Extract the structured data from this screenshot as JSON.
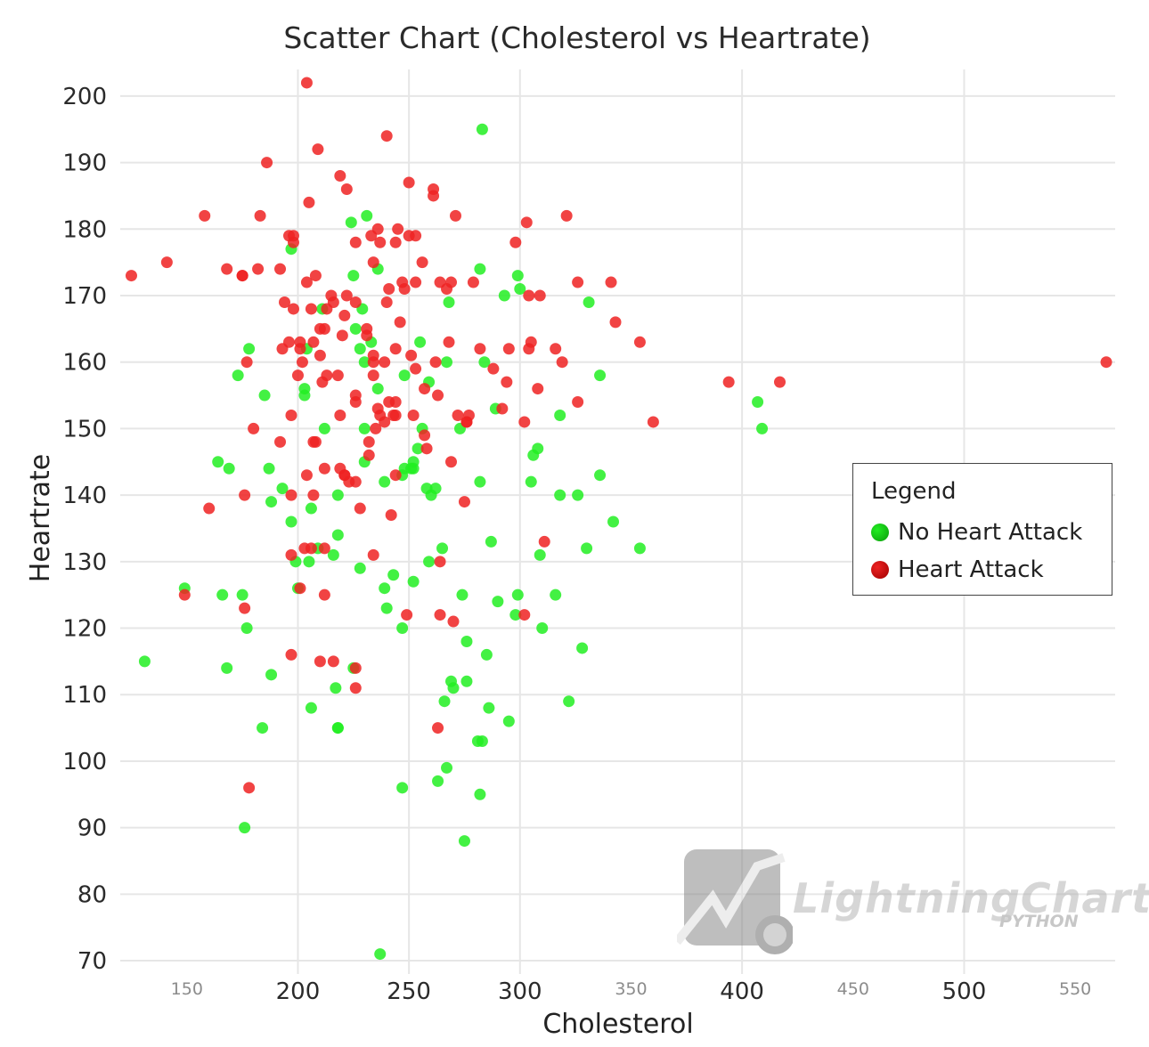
{
  "chart_data": {
    "type": "scatter",
    "title": "Scatter Chart (Cholesterol vs Heartrate)",
    "xlabel": "Cholesterol",
    "ylabel": "Heartrate",
    "xlim": [
      120,
      568
    ],
    "ylim": [
      68,
      204
    ],
    "x_ticks_major": [
      200,
      250,
      300,
      400,
      500
    ],
    "x_ticks_minor": [
      150,
      350,
      450,
      550
    ],
    "y_ticks": [
      70,
      80,
      90,
      100,
      110,
      120,
      130,
      140,
      150,
      160,
      170,
      180,
      190,
      200
    ],
    "grid": true,
    "legend": {
      "title": "Legend",
      "placement": "right"
    },
    "series": [
      {
        "name": "No Heart Attack",
        "color": "#22ee22",
        "points": [
          [
            283,
            195
          ],
          [
            231,
            182
          ],
          [
            224,
            181
          ],
          [
            197,
            177
          ],
          [
            236,
            174
          ],
          [
            282,
            174
          ],
          [
            299,
            173
          ],
          [
            225,
            173
          ],
          [
            300,
            171
          ],
          [
            293,
            170
          ],
          [
            331,
            169
          ],
          [
            268,
            169
          ],
          [
            229,
            168
          ],
          [
            211,
            168
          ],
          [
            226,
            165
          ],
          [
            233,
            163
          ],
          [
            255,
            163
          ],
          [
            204,
            162
          ],
          [
            178,
            162
          ],
          [
            228,
            162
          ],
          [
            230,
            160
          ],
          [
            267,
            160
          ],
          [
            284,
            160
          ],
          [
            173,
            158
          ],
          [
            248,
            158
          ],
          [
            336,
            158
          ],
          [
            259,
            157
          ],
          [
            185,
            155
          ],
          [
            203,
            155
          ],
          [
            203,
            156
          ],
          [
            236,
            156
          ],
          [
            289,
            153
          ],
          [
            308,
            147
          ],
          [
            306,
            146
          ],
          [
            252,
            145
          ],
          [
            230,
            145
          ],
          [
            318,
            152
          ],
          [
            273,
            150
          ],
          [
            212,
            150
          ],
          [
            230,
            150
          ],
          [
            254,
            147
          ],
          [
            256,
            150
          ],
          [
            164,
            145
          ],
          [
            169,
            144
          ],
          [
            187,
            144
          ],
          [
            248,
            144
          ],
          [
            251,
            144
          ],
          [
            252,
            144
          ],
          [
            336,
            143
          ],
          [
            247,
            143
          ],
          [
            262,
            141
          ],
          [
            258,
            141
          ],
          [
            260,
            140
          ],
          [
            193,
            141
          ],
          [
            218,
            140
          ],
          [
            239,
            142
          ],
          [
            318,
            140
          ],
          [
            326,
            140
          ],
          [
            282,
            142
          ],
          [
            305,
            142
          ],
          [
            188,
            139
          ],
          [
            197,
            136
          ],
          [
            206,
            138
          ],
          [
            342,
            136
          ],
          [
            218,
            134
          ],
          [
            287,
            133
          ],
          [
            209,
            132
          ],
          [
            216,
            131
          ],
          [
            205,
            130
          ],
          [
            199,
            130
          ],
          [
            354,
            132
          ],
          [
            330,
            132
          ],
          [
            309,
            131
          ],
          [
            265,
            132
          ],
          [
            259,
            130
          ],
          [
            243,
            128
          ],
          [
            252,
            127
          ],
          [
            166,
            125
          ],
          [
            175,
            125
          ],
          [
            177,
            120
          ],
          [
            149,
            126
          ],
          [
            200,
            126
          ],
          [
            228,
            129
          ],
          [
            239,
            126
          ],
          [
            274,
            125
          ],
          [
            299,
            125
          ],
          [
            316,
            125
          ],
          [
            290,
            124
          ],
          [
            240,
            123
          ],
          [
            298,
            122
          ],
          [
            310,
            120
          ],
          [
            247,
            120
          ],
          [
            328,
            117
          ],
          [
            276,
            118
          ],
          [
            285,
            116
          ],
          [
            168,
            114
          ],
          [
            131,
            115
          ],
          [
            188,
            113
          ],
          [
            225,
            114
          ],
          [
            269,
            112
          ],
          [
            270,
            111
          ],
          [
            276,
            112
          ],
          [
            217,
            111
          ],
          [
            206,
            108
          ],
          [
            266,
            109
          ],
          [
            286,
            108
          ],
          [
            322,
            109
          ],
          [
            295,
            106
          ],
          [
            184,
            105
          ],
          [
            218,
            105
          ],
          [
            281,
            103
          ],
          [
            283,
            103
          ],
          [
            267,
            99
          ],
          [
            263,
            97
          ],
          [
            247,
            96
          ],
          [
            282,
            95
          ],
          [
            176,
            90
          ],
          [
            275,
            88
          ],
          [
            237,
            71
          ],
          [
            407,
            154
          ],
          [
            409,
            150
          ],
          [
            218,
            105
          ]
        ]
      },
      {
        "name": "Heart Attack",
        "color": "#ee2222",
        "points": [
          [
            204,
            202
          ],
          [
            240,
            194
          ],
          [
            209,
            192
          ],
          [
            186,
            190
          ],
          [
            219,
            188
          ],
          [
            250,
            187
          ],
          [
            261,
            186
          ],
          [
            261,
            185
          ],
          [
            222,
            186
          ],
          [
            205,
            184
          ],
          [
            158,
            182
          ],
          [
            183,
            182
          ],
          [
            271,
            182
          ],
          [
            321,
            182
          ],
          [
            303,
            181
          ],
          [
            236,
            180
          ],
          [
            245,
            180
          ],
          [
            198,
            179
          ],
          [
            196,
            179
          ],
          [
            233,
            179
          ],
          [
            250,
            179
          ],
          [
            253,
            179
          ],
          [
            298,
            178
          ],
          [
            226,
            178
          ],
          [
            237,
            178
          ],
          [
            244,
            178
          ],
          [
            198,
            178
          ],
          [
            141,
            175
          ],
          [
            234,
            175
          ],
          [
            256,
            175
          ],
          [
            168,
            174
          ],
          [
            182,
            174
          ],
          [
            192,
            174
          ],
          [
            175,
            173
          ],
          [
            175,
            173
          ],
          [
            125,
            173
          ],
          [
            208,
            173
          ],
          [
            247,
            172
          ],
          [
            253,
            172
          ],
          [
            264,
            172
          ],
          [
            269,
            172
          ],
          [
            279,
            172
          ],
          [
            326,
            172
          ],
          [
            341,
            172
          ],
          [
            204,
            172
          ],
          [
            267,
            171
          ],
          [
            241,
            171
          ],
          [
            248,
            171
          ],
          [
            304,
            170
          ],
          [
            309,
            170
          ],
          [
            215,
            170
          ],
          [
            222,
            170
          ],
          [
            194,
            169
          ],
          [
            216,
            169
          ],
          [
            226,
            169
          ],
          [
            240,
            169
          ],
          [
            206,
            168
          ],
          [
            213,
            168
          ],
          [
            198,
            168
          ],
          [
            221,
            167
          ],
          [
            246,
            166
          ],
          [
            343,
            166
          ],
          [
            231,
            165
          ],
          [
            210,
            165
          ],
          [
            212,
            165
          ],
          [
            220,
            164
          ],
          [
            268,
            163
          ],
          [
            231,
            164
          ],
          [
            305,
            163
          ],
          [
            196,
            163
          ],
          [
            201,
            163
          ],
          [
            207,
            163
          ],
          [
            193,
            162
          ],
          [
            201,
            162
          ],
          [
            244,
            162
          ],
          [
            282,
            162
          ],
          [
            295,
            162
          ],
          [
            304,
            162
          ],
          [
            316,
            162
          ],
          [
            354,
            163
          ],
          [
            177,
            160
          ],
          [
            234,
            160
          ],
          [
            239,
            160
          ],
          [
            251,
            161
          ],
          [
            262,
            160
          ],
          [
            319,
            160
          ],
          [
            210,
            161
          ],
          [
            202,
            160
          ],
          [
            234,
            161
          ],
          [
            564,
            160
          ],
          [
            200,
            158
          ],
          [
            213,
            158
          ],
          [
            218,
            158
          ],
          [
            234,
            158
          ],
          [
            253,
            159
          ],
          [
            257,
            156
          ],
          [
            263,
            155
          ],
          [
            294,
            157
          ],
          [
            308,
            156
          ],
          [
            211,
            157
          ],
          [
            226,
            155
          ],
          [
            226,
            154
          ],
          [
            241,
            154
          ],
          [
            244,
            154
          ],
          [
            326,
            154
          ],
          [
            394,
            157
          ],
          [
            417,
            157
          ],
          [
            197,
            152
          ],
          [
            219,
            152
          ],
          [
            237,
            152
          ],
          [
            243,
            152
          ],
          [
            252,
            152
          ],
          [
            272,
            152
          ],
          [
            277,
            152
          ],
          [
            292,
            153
          ],
          [
            236,
            153
          ],
          [
            302,
            151
          ],
          [
            360,
            151
          ],
          [
            235,
            150
          ],
          [
            239,
            151
          ],
          [
            276,
            151
          ],
          [
            180,
            150
          ],
          [
            192,
            148
          ],
          [
            207,
            148
          ],
          [
            257,
            149
          ],
          [
            258,
            147
          ],
          [
            232,
            148
          ],
          [
            232,
            146
          ],
          [
            269,
            145
          ],
          [
            244,
            143
          ],
          [
            204,
            143
          ],
          [
            221,
            143
          ],
          [
            212,
            144
          ],
          [
            219,
            144
          ],
          [
            221,
            143
          ],
          [
            223,
            142
          ],
          [
            197,
            140
          ],
          [
            176,
            140
          ],
          [
            207,
            140
          ],
          [
            160,
            138
          ],
          [
            228,
            138
          ],
          [
            242,
            137
          ],
          [
            275,
            139
          ],
          [
            206,
            132
          ],
          [
            203,
            132
          ],
          [
            212,
            132
          ],
          [
            311,
            133
          ],
          [
            234,
            131
          ],
          [
            197,
            131
          ],
          [
            264,
            130
          ],
          [
            201,
            126
          ],
          [
            212,
            125
          ],
          [
            149,
            125
          ],
          [
            176,
            123
          ],
          [
            249,
            122
          ],
          [
            264,
            122
          ],
          [
            270,
            121
          ],
          [
            302,
            122
          ],
          [
            197,
            116
          ],
          [
            210,
            115
          ],
          [
            216,
            115
          ],
          [
            226,
            114
          ],
          [
            226,
            111
          ],
          [
            263,
            105
          ],
          [
            178,
            96
          ],
          [
            288,
            159
          ],
          [
            208,
            148
          ],
          [
            226,
            142
          ],
          [
            244,
            152
          ],
          [
            276,
            151
          ]
        ]
      }
    ]
  },
  "watermark": {
    "brand": "LightningChart",
    "product": "PYTHON"
  }
}
